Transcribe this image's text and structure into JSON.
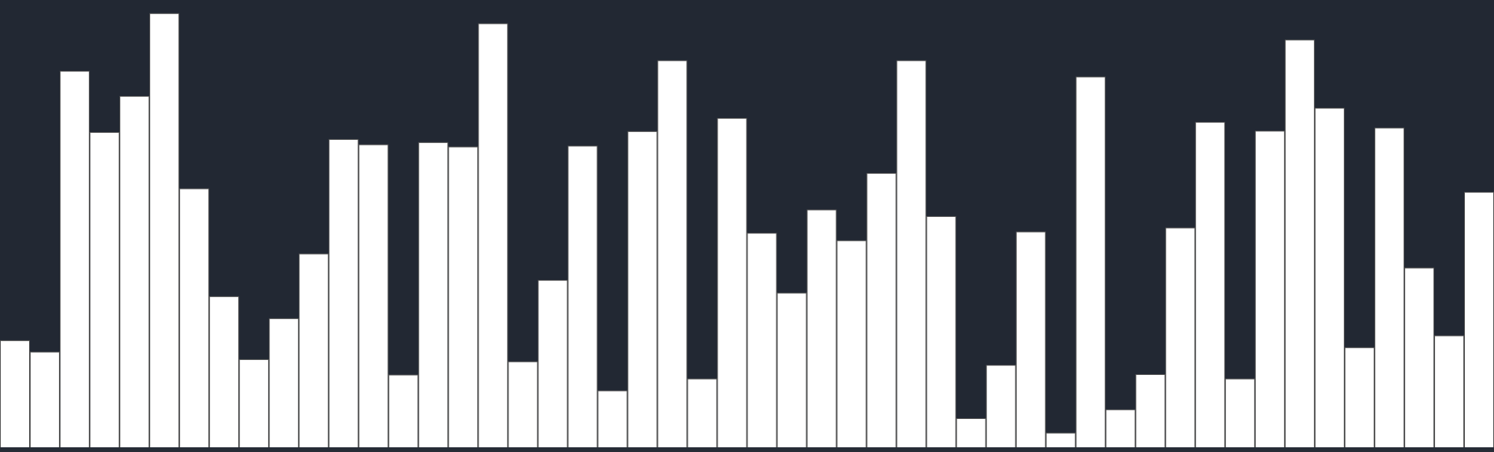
{
  "chart_data": {
    "type": "bar",
    "title": "",
    "xlabel": "",
    "ylabel": "",
    "ylim": [
      0,
      1
    ],
    "grid": false,
    "legend": "none",
    "bar_color": "#ffffff",
    "bar_edge_color": "#555555",
    "background_color": "#222833",
    "values": [
      0.244,
      0.218,
      0.856,
      0.717,
      0.799,
      0.987,
      0.589,
      0.344,
      0.201,
      0.294,
      0.441,
      0.701,
      0.689,
      0.166,
      0.694,
      0.684,
      0.964,
      0.196,
      0.381,
      0.686,
      0.13,
      0.719,
      0.88,
      0.157,
      0.749,
      0.488,
      0.352,
      0.541,
      0.471,
      0.624,
      0.88,
      0.526,
      0.067,
      0.188,
      0.491,
      0.034,
      0.843,
      0.087,
      0.167,
      0.5,
      0.74,
      0.157,
      0.72,
      0.927,
      0.772,
      0.228,
      0.727,
      0.409,
      0.255,
      0.581
    ]
  }
}
